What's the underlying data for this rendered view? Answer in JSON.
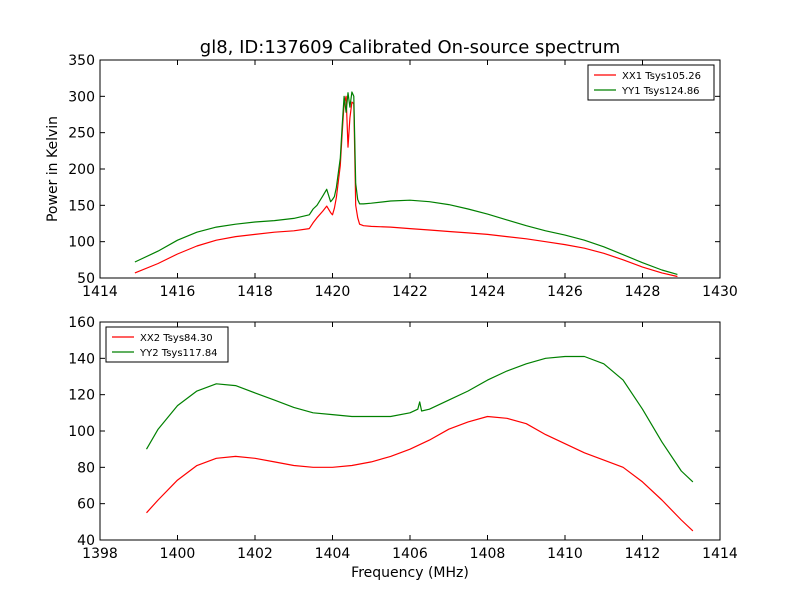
{
  "figure": {
    "title": "gl8, ID:137609 Calibrated On-source spectrum",
    "ylabel": "Power in Kelvin",
    "xlabel": "Frequency (MHz)"
  },
  "chart_data": [
    {
      "type": "line",
      "title": "gl8, ID:137609 Calibrated On-source spectrum",
      "xlabel": "",
      "ylabel": "Power in Kelvin",
      "xlim": [
        1414,
        1430
      ],
      "ylim": [
        50,
        350
      ],
      "xticks": [
        1414,
        1416,
        1418,
        1420,
        1422,
        1424,
        1426,
        1428,
        1430
      ],
      "yticks": [
        50,
        100,
        150,
        200,
        250,
        300,
        350
      ],
      "grid": false,
      "legend_position": "top-right",
      "series": [
        {
          "name": "XX1 Tsys105.26",
          "color": "#ff0000",
          "x": [
            1414.9,
            1415.5,
            1416.0,
            1416.5,
            1417.0,
            1417.5,
            1418.0,
            1418.5,
            1419.0,
            1419.4,
            1419.5,
            1419.6,
            1419.75,
            1419.85,
            1419.95,
            1420.0,
            1420.05,
            1420.1,
            1420.2,
            1420.25,
            1420.3,
            1420.35,
            1420.4,
            1420.45,
            1420.5,
            1420.55,
            1420.6,
            1420.65,
            1420.7,
            1420.8,
            1421.0,
            1421.5,
            1422.0,
            1422.5,
            1423.0,
            1423.5,
            1424.0,
            1424.5,
            1425.0,
            1425.5,
            1426.0,
            1426.5,
            1427.0,
            1427.5,
            1428.0,
            1428.5,
            1428.9
          ],
          "y": [
            57,
            70,
            83,
            94,
            102,
            107,
            110,
            113,
            115,
            118,
            126,
            133,
            142,
            149,
            140,
            137,
            146,
            161,
            205,
            250,
            290,
            300,
            230,
            270,
            292,
            290,
            150,
            133,
            124,
            122,
            121,
            120,
            118,
            116,
            114,
            112,
            110,
            107,
            104,
            100,
            96,
            91,
            84,
            75,
            65,
            57,
            52
          ]
        },
        {
          "name": "YY1 Tsys124.86",
          "color": "#008000",
          "x": [
            1414.9,
            1415.5,
            1416.0,
            1416.5,
            1417.0,
            1417.5,
            1418.0,
            1418.5,
            1419.0,
            1419.4,
            1419.5,
            1419.6,
            1419.75,
            1419.85,
            1419.95,
            1420.0,
            1420.05,
            1420.1,
            1420.2,
            1420.25,
            1420.3,
            1420.35,
            1420.4,
            1420.45,
            1420.5,
            1420.55,
            1420.6,
            1420.65,
            1420.7,
            1420.8,
            1421.0,
            1421.5,
            1422.0,
            1422.5,
            1423.0,
            1423.5,
            1424.0,
            1424.5,
            1425.0,
            1425.5,
            1426.0,
            1426.5,
            1427.0,
            1427.5,
            1428.0,
            1428.5,
            1428.9
          ],
          "y": [
            72,
            87,
            102,
            113,
            120,
            124,
            127,
            129,
            132,
            137,
            145,
            150,
            163,
            172,
            155,
            158,
            162,
            175,
            215,
            260,
            300,
            278,
            305,
            285,
            306,
            300,
            180,
            158,
            152,
            152,
            153,
            156,
            157,
            155,
            151,
            145,
            138,
            130,
            122,
            115,
            109,
            102,
            93,
            82,
            71,
            61,
            55
          ]
        }
      ]
    },
    {
      "type": "line",
      "title": "",
      "xlabel": "Frequency (MHz)",
      "ylabel": "",
      "xlim": [
        1398,
        1414
      ],
      "ylim": [
        40,
        160
      ],
      "xticks": [
        1398,
        1400,
        1402,
        1404,
        1406,
        1408,
        1410,
        1412,
        1414
      ],
      "yticks": [
        40,
        60,
        80,
        100,
        120,
        140,
        160
      ],
      "grid": false,
      "legend_position": "top-left",
      "series": [
        {
          "name": "XX2 Tsys84.30",
          "color": "#ff0000",
          "x": [
            1399.2,
            1399.5,
            1400.0,
            1400.5,
            1401.0,
            1401.5,
            1402.0,
            1402.5,
            1403.0,
            1403.5,
            1404.0,
            1404.5,
            1405.0,
            1405.5,
            1406.0,
            1406.5,
            1407.0,
            1407.5,
            1408.0,
            1408.5,
            1409.0,
            1409.5,
            1410.0,
            1410.5,
            1411.0,
            1411.5,
            1412.0,
            1412.5,
            1413.0,
            1413.3
          ],
          "y": [
            55,
            62,
            73,
            81,
            85,
            86,
            85,
            83,
            81,
            80,
            80,
            81,
            83,
            86,
            90,
            95,
            101,
            105,
            108,
            107,
            104,
            98,
            93,
            88,
            84,
            80,
            72,
            62,
            51,
            45
          ]
        },
        {
          "name": "YY2 Tsys117.84",
          "color": "#008000",
          "x": [
            1399.2,
            1399.5,
            1400.0,
            1400.5,
            1401.0,
            1401.5,
            1402.0,
            1402.5,
            1403.0,
            1403.5,
            1404.0,
            1404.5,
            1405.0,
            1405.5,
            1406.0,
            1406.2,
            1406.25,
            1406.3,
            1406.5,
            1407.0,
            1407.5,
            1408.0,
            1408.5,
            1409.0,
            1409.5,
            1410.0,
            1410.5,
            1411.0,
            1411.5,
            1412.0,
            1412.5,
            1413.0,
            1413.3
          ],
          "y": [
            90,
            101,
            114,
            122,
            126,
            125,
            121,
            117,
            113,
            110,
            109,
            108,
            108,
            108,
            110,
            112,
            116,
            111,
            112,
            117,
            122,
            128,
            133,
            137,
            140,
            141,
            141,
            137,
            128,
            112,
            94,
            78,
            72
          ]
        }
      ]
    }
  ]
}
